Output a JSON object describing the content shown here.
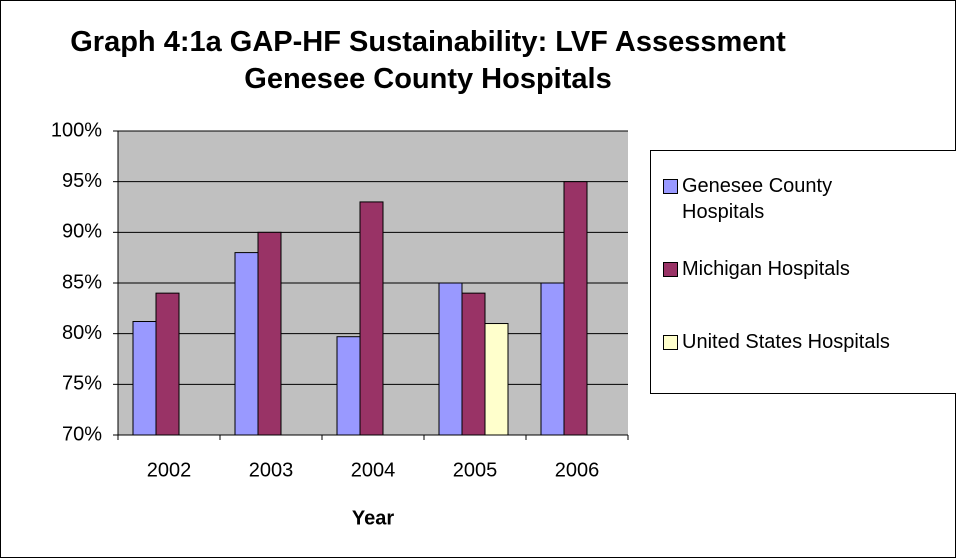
{
  "chart_data": {
    "type": "bar",
    "title": "Graph 4:1a  GAP-HF Sustainability: LVF Assessment\nGenesee County Hospitals",
    "x_label": "Year",
    "categories": [
      "2002",
      "2003",
      "2004",
      "2005",
      "2006"
    ],
    "series": [
      {
        "name": "Genesee County Hospitals",
        "color": "#9999ff",
        "values": [
          81.2,
          88,
          79.7,
          85,
          85
        ]
      },
      {
        "name": "Michigan Hospitals",
        "color": "#993366",
        "values": [
          84,
          90,
          93,
          84,
          95
        ]
      },
      {
        "name": "United States Hospitals",
        "color": "#ffffcc",
        "values": [
          null,
          null,
          null,
          81,
          null
        ]
      }
    ],
    "ylim": [
      70,
      100
    ],
    "yticks": [
      {
        "value": 70,
        "label": "70%"
      },
      {
        "value": 75,
        "label": "75%"
      },
      {
        "value": 80,
        "label": "80%"
      },
      {
        "value": 85,
        "label": "85%"
      },
      {
        "value": 90,
        "label": "90%"
      },
      {
        "value": 95,
        "label": "95%"
      },
      {
        "value": 100,
        "label": "100%"
      }
    ],
    "grid": true,
    "legend": "right"
  }
}
